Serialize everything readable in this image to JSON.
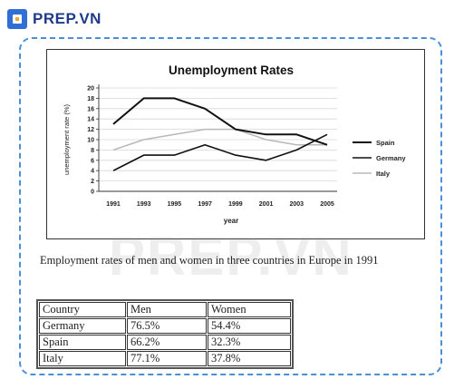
{
  "brand": {
    "name": "PREP.VN",
    "color": "#1f3a8a",
    "watermark": "PREP.VN"
  },
  "chart_data": {
    "type": "line",
    "title": "Unemployment Rates",
    "xlabel": "year",
    "ylabel": "unemployment rate (%)",
    "x": [
      "1991",
      "1993",
      "1995",
      "1997",
      "1999",
      "2001",
      "2003",
      "2005"
    ],
    "ylim": [
      0,
      20
    ],
    "yticks": [
      0,
      2,
      4,
      6,
      8,
      10,
      12,
      14,
      16,
      18,
      20
    ],
    "grid": true,
    "legend_position": "right",
    "series": [
      {
        "name": "Spain",
        "color": "#111111",
        "width": 2,
        "values": [
          13,
          18,
          18,
          16,
          12,
          11,
          11,
          9
        ]
      },
      {
        "name": "Germany",
        "color": "#111111",
        "width": 1.6,
        "values": [
          4,
          7,
          7,
          9,
          7,
          6,
          8,
          11
        ]
      },
      {
        "name": "Italy",
        "color": "#b8b8b8",
        "width": 1.5,
        "values": [
          8,
          10,
          11,
          12,
          12,
          10,
          9,
          9
        ]
      }
    ]
  },
  "caption": "Employment rates of men and women in three countries in Europe in 1991",
  "table": {
    "headers": [
      "Country",
      "Men",
      "Women"
    ],
    "rows": [
      [
        "Germany",
        "76.5%",
        "54.4%"
      ],
      [
        "Spain",
        "66.2%",
        "32.3%"
      ],
      [
        "Italy",
        "77.1%",
        "37.8%"
      ]
    ]
  }
}
